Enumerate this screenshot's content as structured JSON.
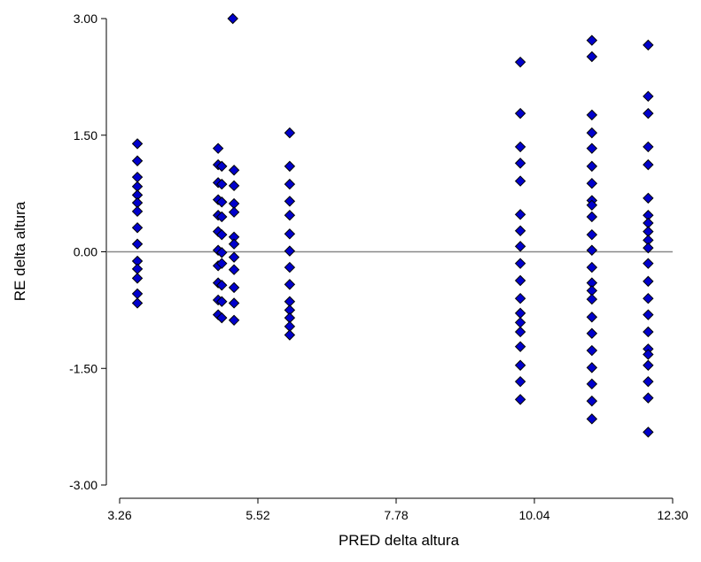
{
  "chart_data": {
    "type": "scatter",
    "x_label": "PRED delta altura",
    "y_label": "RE delta altura",
    "xlim": [
      3.26,
      12.3
    ],
    "xticks": [
      3.26,
      5.52,
      7.78,
      10.04,
      {
        "value": 12.3,
        "label": "12.30"
      }
    ],
    "ylim": [
      -3,
      3
    ],
    "yticks": [
      {
        "value": 3,
        "label": "3.00"
      },
      {
        "value": 1.5,
        "label": "1.50"
      },
      {
        "value": 0,
        "label": "0.00"
      },
      {
        "value": -1.5,
        "label": "-1.50"
      },
      {
        "value": -3,
        "label": "-3.00"
      }
    ],
    "reference_line": 0,
    "series": [
      {
        "color": "#0000cc",
        "x": [
          3.55,
          3.55,
          3.55,
          3.55,
          3.55,
          3.55,
          3.55,
          3.55,
          3.55,
          3.55,
          3.55,
          3.55,
          3.55,
          3.55,
          4.87,
          4.87,
          4.87,
          4.87,
          4.87,
          4.87,
          4.87,
          4.87,
          4.87,
          4.87,
          4.87,
          4.93,
          4.93,
          4.93,
          4.93,
          4.93,
          4.93,
          4.93,
          4.93,
          4.93,
          4.93,
          5.13,
          5.13,
          5.13,
          5.13,
          5.13,
          5.13,
          5.13,
          5.13,
          5.13,
          5.13,
          5.13,
          5.11,
          6.04,
          6.04,
          6.04,
          6.04,
          6.04,
          6.04,
          6.04,
          6.04,
          6.04,
          6.04,
          6.04,
          6.04,
          6.04,
          6.04,
          9.81,
          9.81,
          9.81,
          9.81,
          9.81,
          9.81,
          9.81,
          9.81,
          9.81,
          9.81,
          9.81,
          9.81,
          9.81,
          9.81,
          9.81,
          9.81,
          9.81,
          9.81,
          10.98,
          10.98,
          10.98,
          10.98,
          10.98,
          10.98,
          10.98,
          10.98,
          10.98,
          10.98,
          10.98,
          10.98,
          10.98,
          10.98,
          10.98,
          10.98,
          10.98,
          10.98,
          10.98,
          10.98,
          10.98,
          10.98,
          10.98,
          11.9,
          11.9,
          11.9,
          11.9,
          11.9,
          11.9,
          11.9,
          11.9,
          11.9,
          11.9,
          11.9,
          11.9,
          11.9,
          11.9,
          11.9,
          11.9,
          11.9,
          11.9,
          11.9,
          11.9,
          11.9,
          11.9
        ],
        "values": [
          1.39,
          1.17,
          0.96,
          0.84,
          0.73,
          0.63,
          0.52,
          0.31,
          0.1,
          -0.12,
          -0.22,
          -0.34,
          -0.54,
          -0.66,
          1.33,
          1.12,
          0.89,
          0.67,
          0.47,
          0.26,
          0.02,
          -0.18,
          -0.4,
          -0.62,
          -0.81,
          1.1,
          0.87,
          0.64,
          0.45,
          0.22,
          -0.01,
          -0.15,
          -0.43,
          -0.64,
          -0.85,
          1.05,
          0.85,
          0.62,
          0.51,
          0.19,
          0.1,
          -0.07,
          -0.23,
          -0.46,
          -0.66,
          -0.88,
          3.0,
          1.53,
          1.1,
          0.87,
          0.65,
          0.47,
          0.23,
          0.01,
          -0.2,
          -0.42,
          -0.64,
          -0.75,
          -0.85,
          -0.96,
          -1.07,
          2.44,
          1.78,
          1.35,
          1.14,
          0.91,
          0.48,
          0.27,
          0.07,
          -0.15,
          -0.37,
          -0.6,
          -0.79,
          -0.91,
          -1.03,
          -1.22,
          -1.46,
          -1.67,
          -1.9,
          2.72,
          2.51,
          1.76,
          1.53,
          1.33,
          1.1,
          0.88,
          0.66,
          0.6,
          0.45,
          0.22,
          0.02,
          -0.2,
          -0.4,
          -0.5,
          -0.61,
          -0.84,
          -1.05,
          -1.27,
          -1.49,
          -1.7,
          -1.92,
          -2.15,
          2.66,
          2.0,
          1.78,
          1.35,
          1.12,
          0.69,
          0.47,
          0.37,
          0.26,
          0.15,
          0.05,
          -0.15,
          -0.38,
          -0.6,
          -0.81,
          -1.03,
          -1.25,
          -1.32,
          -1.46,
          -1.67,
          -1.88,
          -2.32
        ]
      }
    ]
  }
}
